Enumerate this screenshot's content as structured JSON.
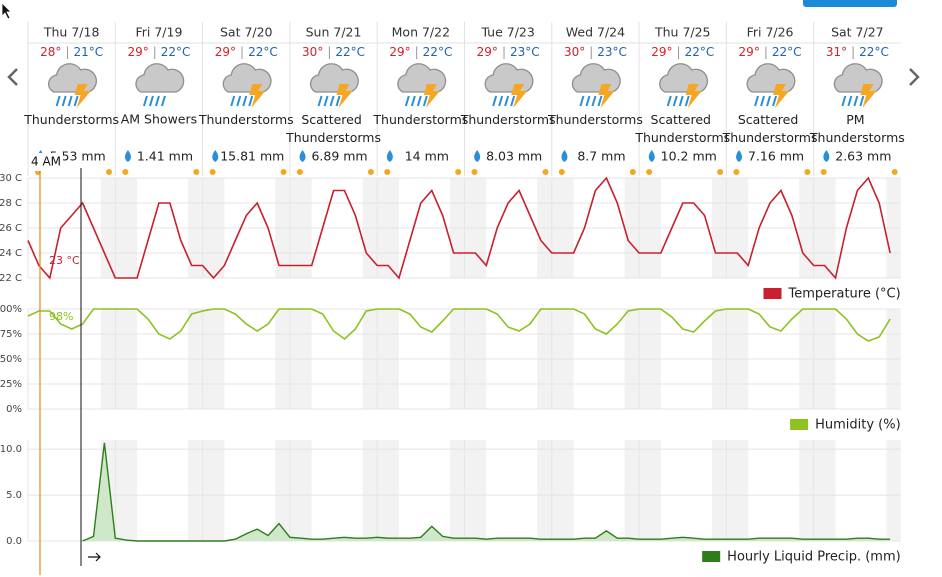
{
  "hover_time": "4 AM",
  "high_low_separator": "|",
  "days": [
    {
      "date": "Thu 7/18",
      "high": "28°",
      "low": "21°C",
      "condition": "Thunderstorms",
      "precip": "5.53 mm"
    },
    {
      "date": "Fri 7/19",
      "high": "29°",
      "low": "22°C",
      "condition": "AM Showers",
      "precip": "1.41 mm"
    },
    {
      "date": "Sat 7/20",
      "high": "29°",
      "low": "22°C",
      "condition": "Thunderstorms",
      "precip": "15.81 mm"
    },
    {
      "date": "Sun 7/21",
      "high": "30°",
      "low": "22°C",
      "condition": "Scattered Thunderstorms",
      "precip": "6.89 mm"
    },
    {
      "date": "Mon 7/22",
      "high": "29°",
      "low": "22°C",
      "condition": "Thunderstorms",
      "precip": "14 mm"
    },
    {
      "date": "Tue 7/23",
      "high": "29°",
      "low": "23°C",
      "condition": "Thunderstorms",
      "precip": "8.03 mm"
    },
    {
      "date": "Wed 7/24",
      "high": "30°",
      "low": "23°C",
      "condition": "Thunderstorms",
      "precip": "8.7 mm"
    },
    {
      "date": "Thu 7/25",
      "high": "29°",
      "low": "22°C",
      "condition": "Scattered Thunderstorms",
      "precip": "10.2 mm"
    },
    {
      "date": "Fri 7/26",
      "high": "29°",
      "low": "22°C",
      "condition": "Scattered Thunderstorms",
      "precip": "7.16 mm"
    },
    {
      "date": "Sat 7/27",
      "high": "31°",
      "low": "22°C",
      "condition": "PM Thunderstorms",
      "precip": "2.63 mm"
    }
  ],
  "chart_data": [
    {
      "type": "line",
      "hover_label": "23 °C",
      "series": [
        {
          "name": "Temperature (°C)",
          "color": "#c8202f",
          "values": [
            25,
            23,
            22,
            26,
            27,
            28,
            26,
            24,
            22,
            22,
            22,
            25,
            28,
            28,
            25,
            23,
            23,
            22,
            23,
            25,
            27,
            28,
            26,
            23,
            23,
            23,
            23,
            26,
            29,
            29,
            27,
            24,
            23,
            23,
            22,
            25,
            28,
            29,
            27,
            24,
            24,
            24,
            23,
            26,
            28,
            29,
            27,
            25,
            24,
            24,
            24,
            26,
            29,
            30,
            28,
            25,
            24,
            24,
            24,
            26,
            28,
            28,
            27,
            24,
            24,
            24,
            23,
            26,
            28,
            29,
            27,
            24,
            23,
            23,
            22,
            26,
            29,
            30,
            28,
            24
          ]
        }
      ],
      "ylim": [
        22,
        30
      ],
      "yticks": [
        {
          "value": 22,
          "label": "22 C"
        },
        {
          "value": 24,
          "label": "24 C"
        },
        {
          "value": 26,
          "label": "26 C"
        },
        {
          "value": 28,
          "label": "28 C"
        },
        {
          "value": 30,
          "label": "30 C"
        }
      ],
      "grid": true
    },
    {
      "type": "line",
      "hover_label": "98%",
      "series": [
        {
          "name": "Humidity (%)",
          "color": "#8dc21f",
          "values": [
            93,
            98,
            98,
            85,
            80,
            85,
            100,
            100,
            100,
            100,
            100,
            90,
            75,
            70,
            78,
            95,
            98,
            100,
            100,
            95,
            85,
            78,
            85,
            100,
            100,
            100,
            100,
            95,
            78,
            70,
            80,
            98,
            100,
            100,
            100,
            95,
            82,
            77,
            88,
            100,
            100,
            100,
            100,
            95,
            82,
            78,
            85,
            100,
            100,
            100,
            100,
            95,
            80,
            75,
            85,
            98,
            100,
            100,
            100,
            92,
            80,
            77,
            88,
            98,
            100,
            100,
            100,
            95,
            82,
            78,
            90,
            100,
            100,
            100,
            100,
            90,
            75,
            68,
            72,
            90
          ]
        }
      ],
      "ylim": [
        0,
        100
      ],
      "yticks": [
        {
          "value": 0,
          "label": "0%"
        },
        {
          "value": 25,
          "label": "25%"
        },
        {
          "value": 50,
          "label": "50%"
        },
        {
          "value": 75,
          "label": "75%"
        },
        {
          "value": 100,
          "label": "100%"
        }
      ],
      "grid": true
    },
    {
      "type": "area",
      "series": [
        {
          "name": "Hourly Liquid Precip. (mm)",
          "color": "#2d7d1a",
          "values": [
            null,
            null,
            null,
            null,
            null,
            0,
            0.5,
            10.7,
            0.3,
            0.1,
            0,
            0,
            0,
            0,
            0,
            0,
            0,
            0,
            0,
            0.2,
            0.8,
            1.3,
            0.6,
            1.9,
            0.4,
            0.3,
            0.2,
            0.2,
            0.3,
            0.4,
            0.3,
            0.3,
            0.4,
            0.3,
            0.3,
            0.3,
            0.4,
            1.6,
            0.5,
            0.3,
            0.3,
            0.3,
            0.2,
            0.3,
            0.3,
            0.3,
            0.3,
            0.2,
            0.2,
            0.2,
            0.2,
            0.3,
            0.3,
            1.1,
            0.3,
            0.3,
            0.2,
            0.2,
            0.2,
            0.3,
            0.4,
            0.3,
            0.2,
            0.2,
            0.2,
            0.2,
            0.2,
            0.3,
            0.3,
            0.3,
            0.3,
            0.2,
            0.2,
            0.2,
            0.2,
            0.2,
            0.3,
            0.3,
            0.2,
            0.2
          ]
        }
      ],
      "ylim": [
        0,
        11
      ],
      "yticks": [
        {
          "value": 0,
          "label": "0.0"
        },
        {
          "value": 5,
          "label": "5.0"
        },
        {
          "value": 10,
          "label": "10.0"
        }
      ],
      "grid": true
    }
  ]
}
